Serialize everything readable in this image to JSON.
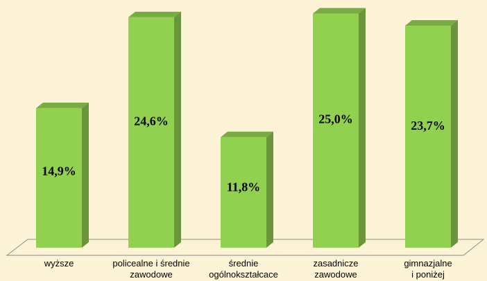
{
  "chart_data": {
    "type": "bar3d",
    "categories": [
      "wyższe",
      "policealne i średnie\nzawodowe",
      "średnie\nogólnokształcace",
      "zasadnicze\nzawodowe",
      "gimnazjalne\ni poniżej"
    ],
    "values": [
      14.9,
      24.6,
      11.8,
      25.0,
      23.7
    ],
    "value_labels": [
      "14,9%",
      "24,6%",
      "11,8%",
      "25,0%",
      "23,7%"
    ],
    "color": "#92d050"
  }
}
